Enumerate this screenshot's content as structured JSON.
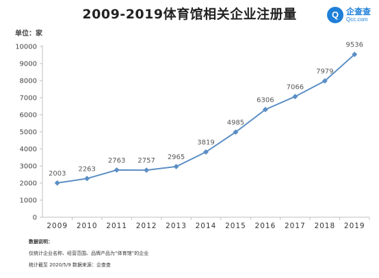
{
  "header": {
    "title": "2009-2019体育馆相关企业注册量",
    "unit_label": "单位：家"
  },
  "brand": {
    "name": "企查查",
    "domain": "Qcc.com",
    "color": "#1e7fd8"
  },
  "notes": {
    "heading": "数据说明：",
    "line1": "仅统计企业名称、经营范围、品牌产品为“体育馆”的企业",
    "line2": "统计截至 2020/5/9   数据来源：企查查"
  },
  "chart_data": {
    "type": "line",
    "title": "2009-2019体育馆相关企业注册量",
    "xlabel": "",
    "ylabel": "单位：家",
    "categories": [
      "2009",
      "2010",
      "2011",
      "2012",
      "2013",
      "2014",
      "2015",
      "2016",
      "2017",
      "2018",
      "2019"
    ],
    "series": [
      {
        "values": [
          2003,
          2263,
          2763,
          2757,
          2965,
          3819,
          4985,
          6306,
          7066,
          7979,
          9536
        ]
      }
    ],
    "ylim": [
      0,
      10000
    ],
    "yticks": [
      0,
      1000,
      2000,
      3000,
      4000,
      5000,
      6000,
      7000,
      8000,
      9000,
      10000
    ],
    "grid": false,
    "line_color": "#5b8ec4",
    "marker": "diamond"
  }
}
